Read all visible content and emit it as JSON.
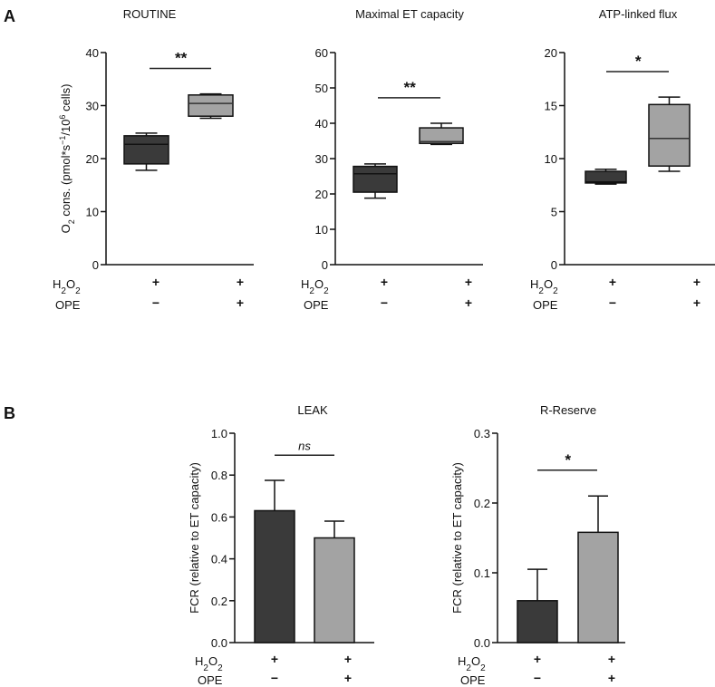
{
  "panel_labels": [
    "A",
    "B"
  ],
  "row_labels": {
    "h2o2": "H2O2",
    "ope": "OPE"
  },
  "colors": {
    "control": "#3a3a3a",
    "treated": "#a3a3a3"
  },
  "chart_data": [
    {
      "type": "box",
      "panel": "A",
      "title": "ROUTINE",
      "ylabel": "O2 cons. (pmol*s-1/10^6 cells)",
      "ylim": [
        0,
        40
      ],
      "yticks": [
        0,
        10,
        20,
        30,
        40
      ],
      "groups": [
        {
          "h2o2": "+",
          "ope": "−",
          "min": 17.8,
          "q1": 19.0,
          "median": 22.7,
          "q3": 24.3,
          "max": 24.8
        },
        {
          "h2o2": "+",
          "ope": "+",
          "min": 27.6,
          "q1": 28.0,
          "median": 30.4,
          "q3": 32.0,
          "max": 32.2
        }
      ],
      "significance": {
        "label": "**",
        "y": 37
      }
    },
    {
      "type": "box",
      "panel": "A",
      "title": "Maximal ET capacity",
      "ylabel": "",
      "ylim": [
        0,
        60
      ],
      "yticks": [
        0,
        10,
        20,
        30,
        40,
        50,
        60
      ],
      "groups": [
        {
          "h2o2": "+",
          "ope": "−",
          "min": 18.8,
          "q1": 20.5,
          "median": 25.7,
          "q3": 27.8,
          "max": 28.5
        },
        {
          "h2o2": "+",
          "ope": "+",
          "min": 34.0,
          "q1": 34.3,
          "median": 34.8,
          "q3": 38.7,
          "max": 40.0
        }
      ],
      "significance": {
        "label": "**",
        "y": 47.2
      }
    },
    {
      "type": "box",
      "panel": "A",
      "title": "ATP-linked flux",
      "ylabel": "",
      "ylim": [
        0,
        20
      ],
      "yticks": [
        0,
        5,
        10,
        15,
        20
      ],
      "groups": [
        {
          "h2o2": "+",
          "ope": "−",
          "min": 7.6,
          "q1": 7.7,
          "median": 7.8,
          "q3": 8.8,
          "max": 9.0
        },
        {
          "h2o2": "+",
          "ope": "+",
          "min": 8.8,
          "q1": 9.3,
          "median": 11.9,
          "q3": 15.1,
          "max": 15.8
        }
      ],
      "significance": {
        "label": "*",
        "y": 18.2
      }
    },
    {
      "type": "bar",
      "panel": "B",
      "title": "LEAK",
      "ylabel": "FCR (relative to ET capacity)",
      "ylim": [
        0,
        1.0
      ],
      "yticks": [
        "0.0",
        "0.2",
        "0.4",
        "0.6",
        "0.8",
        "1.0"
      ],
      "groups": [
        {
          "h2o2": "+",
          "ope": "−",
          "value": 0.63,
          "error": 0.145
        },
        {
          "h2o2": "+",
          "ope": "+",
          "value": 0.5,
          "error": 0.08
        }
      ],
      "significance": {
        "label": "ns",
        "y": 0.895
      }
    },
    {
      "type": "bar",
      "panel": "B",
      "title": "R-Reserve",
      "ylabel": "FCR (relative to ET capacity)",
      "ylim": [
        0,
        0.3
      ],
      "yticks": [
        "0.0",
        "0.1",
        "0.2",
        "0.3"
      ],
      "groups": [
        {
          "h2o2": "+",
          "ope": "−",
          "value": 0.06,
          "error": 0.045
        },
        {
          "h2o2": "+",
          "ope": "+",
          "value": 0.158,
          "error": 0.052
        }
      ],
      "significance": {
        "label": "*",
        "y": 0.247
      }
    }
  ]
}
